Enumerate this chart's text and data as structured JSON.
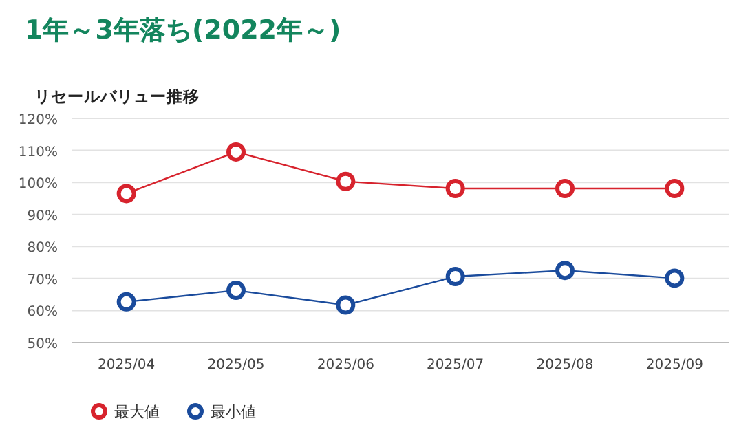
{
  "chart_data": {
    "type": "line",
    "title": "1年～3年落ち(2022年～)",
    "subtitle": "リセールバリュー推移",
    "categories": [
      "2025/04",
      "2025/05",
      "2025/06",
      "2025/07",
      "2025/08",
      "2025/09"
    ],
    "series": [
      {
        "name": "最大値",
        "color": "#d7232d",
        "values": [
          96.5,
          109.5,
          100.3,
          98.1,
          98.1,
          98.1
        ]
      },
      {
        "name": "最小値",
        "color": "#1a4b9c",
        "values": [
          62.7,
          66.3,
          61.7,
          70.6,
          72.5,
          70.1
        ]
      }
    ],
    "ylim": [
      50,
      120
    ],
    "yticks": [
      {
        "value": 50,
        "label": "50%"
      },
      {
        "value": 60,
        "label": "60%"
      },
      {
        "value": 70,
        "label": "70%"
      },
      {
        "value": 80,
        "label": "80%"
      },
      {
        "value": 90,
        "label": "90%"
      },
      {
        "value": 100,
        "label": "100%"
      },
      {
        "value": 110,
        "label": "110%"
      },
      {
        "value": 120,
        "label": "120%"
      }
    ],
    "grid": "y",
    "legend": "bottom left",
    "marker": "circle",
    "line_style": "solid"
  }
}
